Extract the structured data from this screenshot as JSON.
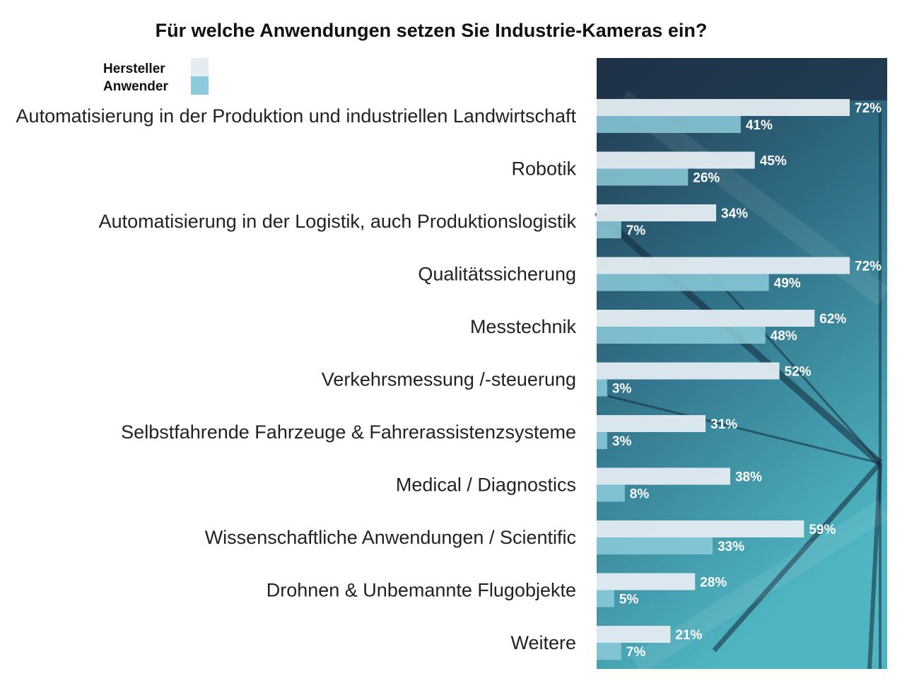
{
  "chart_data": {
    "type": "bar",
    "orientation": "horizontal",
    "title": "Für welche Anwendungen setzen Sie Industrie-Kameras ein?",
    "legend_position": "top-left",
    "grid": false,
    "xlim": [
      0,
      75
    ],
    "categories": [
      "Automatisierung in der Produktion und industriellen Landwirtschaft",
      "Robotik",
      "Automatisierung in der Logistik, auch Produktionslogistik",
      "Qualitätssicherung",
      "Messtechnik",
      "Verkehrsmessung /-steuerung",
      "Selbstfahrende Fahrzeuge & Fahrerassistenzsysteme",
      "Medical / Diagnostics",
      "Wissenschaftliche Anwendungen / Scientific",
      "Drohnen & Unbemannte Flugobjekte",
      "Weitere"
    ],
    "series": [
      {
        "name": "Hersteller",
        "color": "#e4ecf2",
        "values": [
          72,
          45,
          34,
          72,
          62,
          52,
          31,
          38,
          59,
          28,
          21
        ],
        "labels": [
          "72%",
          "45%",
          "34%",
          "72%",
          "62%",
          "52%",
          "31%",
          "38%",
          "59%",
          "28%",
          "21%"
        ]
      },
      {
        "name": "Anwender",
        "color": "#8ccbdb",
        "values": [
          41,
          26,
          7,
          49,
          48,
          3,
          3,
          8,
          33,
          5,
          7
        ],
        "labels": [
          "41%",
          "26%",
          "7%",
          "49%",
          "48%",
          "3%",
          "3%",
          "8%",
          "33%",
          "5%",
          "7%"
        ]
      }
    ]
  }
}
